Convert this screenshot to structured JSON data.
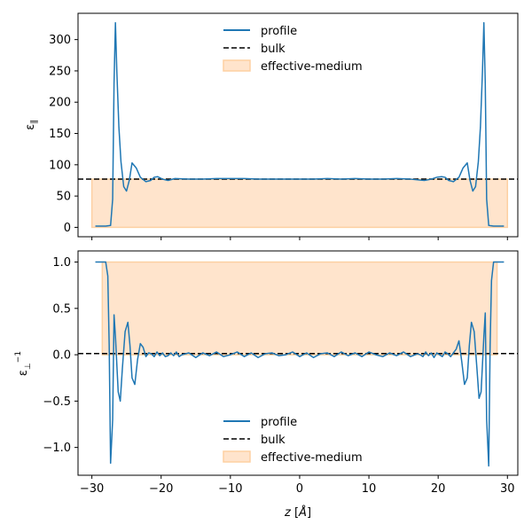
{
  "chart_data": [
    {
      "type": "line",
      "ylabel": "ε_∥",
      "xlim": [
        -32,
        31.5
      ],
      "ylim": [
        -15,
        342
      ],
      "yticks": [
        0,
        50,
        100,
        150,
        200,
        250,
        300
      ],
      "grid": false,
      "legend_placement": "top-center",
      "legend": [
        "profile",
        "bulk",
        "effective-medium"
      ],
      "series": [
        {
          "name": "profile",
          "color": "#1f77b4",
          "x": [
            -29.5,
            -28,
            -27.3,
            -27,
            -26.8,
            -26.6,
            -26.4,
            -26.1,
            -25.8,
            -25.4,
            -25,
            -24.6,
            -24.2,
            -23.6,
            -23,
            -22.2,
            -21.5,
            -21,
            -20.5,
            -19.8,
            -19,
            -18,
            -16,
            -14,
            -12,
            -10,
            -8,
            -6,
            -4,
            -2,
            0,
            2,
            4,
            6,
            8,
            10,
            12,
            14,
            16,
            18,
            19,
            19.8,
            20.5,
            21,
            21.5,
            22.2,
            23,
            23.6,
            24.2,
            24.6,
            25,
            25.4,
            25.8,
            26.1,
            26.4,
            26.6,
            26.8,
            27,
            27.3,
            28,
            29.5
          ],
          "y": [
            2,
            2,
            3,
            45,
            230,
            327,
            250,
            160,
            105,
            65,
            58,
            75,
            103,
            95,
            80,
            73,
            75,
            80,
            81,
            77,
            75,
            78,
            77,
            77,
            78,
            78,
            78,
            77,
            77,
            77,
            77,
            77,
            78,
            77,
            78,
            77,
            77,
            78,
            77,
            75,
            77,
            80,
            81,
            80,
            75,
            73,
            80,
            95,
            103,
            75,
            58,
            65,
            105,
            160,
            250,
            327,
            230,
            45,
            3,
            2,
            2
          ]
        },
        {
          "name": "bulk",
          "style": "dashed",
          "color": "#000000",
          "value": 77
        },
        {
          "name": "effective-medium",
          "type": "area",
          "color": "#ffe4cc",
          "x_range": [
            -30,
            30
          ],
          "value": 77
        }
      ]
    },
    {
      "type": "line",
      "ylabel": "ε_⊥^{-1}",
      "xlabel": "z [Å]",
      "xlim": [
        -32,
        31.5
      ],
      "ylim": [
        -1.3,
        1.12
      ],
      "yticks": [
        -1.0,
        -0.5,
        0.0,
        0.5,
        1.0
      ],
      "xticks": [
        -30,
        -20,
        -10,
        0,
        10,
        20,
        30
      ],
      "grid": false,
      "legend_placement": "bottom-center",
      "legend": [
        "profile",
        "bulk",
        "effective-medium"
      ],
      "series": [
        {
          "name": "profile",
          "color": "#1f77b4",
          "x": [
            -29.5,
            -28.5,
            -28,
            -27.7,
            -27.5,
            -27.3,
            -27,
            -26.8,
            -26.6,
            -26.2,
            -25.9,
            -25.6,
            -25.2,
            -24.8,
            -24.5,
            -24.2,
            -23.8,
            -23.4,
            -23,
            -22.6,
            -22.2,
            -21.8,
            -21.4,
            -21,
            -20.6,
            -20.2,
            -19.8,
            -19.4,
            -19,
            -18.6,
            -18.2,
            -17.8,
            -17.4,
            -17,
            -16,
            -15,
            -14,
            -13,
            -12,
            -11,
            -10,
            -9,
            -8,
            -7,
            -6,
            -5,
            -4,
            -3,
            -2,
            -1,
            0,
            1,
            2,
            3,
            4,
            5,
            6,
            7,
            8,
            9,
            10,
            11,
            12,
            13,
            14,
            15,
            16,
            17,
            17.4,
            17.8,
            18.2,
            18.6,
            19,
            19.4,
            19.8,
            20.2,
            20.6,
            21,
            21.4,
            21.8,
            22.2,
            22.6,
            23,
            23.4,
            23.8,
            24.2,
            24.5,
            24.8,
            25.2,
            25.6,
            25.9,
            26.2,
            26.6,
            26.8,
            27,
            27.3,
            27.5,
            27.7,
            28,
            28.5,
            29.5
          ],
          "y": [
            1.0,
            1.0,
            1.0,
            0.85,
            0.1,
            -1.17,
            -0.7,
            0.43,
            0.2,
            -0.4,
            -0.5,
            -0.15,
            0.25,
            0.35,
            0.1,
            -0.25,
            -0.32,
            -0.05,
            0.12,
            0.08,
            -0.02,
            0.02,
            0.01,
            -0.02,
            0.03,
            -0.01,
            0.02,
            -0.02,
            -0.01,
            0.02,
            -0.01,
            0.03,
            -0.02,
            0.0,
            0.02,
            -0.03,
            0.02,
            -0.01,
            0.03,
            -0.02,
            0.0,
            0.03,
            -0.02,
            0.02,
            -0.03,
            0.01,
            0.02,
            -0.01,
            0.0,
            0.03,
            -0.02,
            0.02,
            -0.03,
            0.01,
            0.02,
            -0.02,
            0.03,
            -0.01,
            0.02,
            -0.02,
            0.03,
            0.0,
            -0.02,
            0.02,
            -0.01,
            0.03,
            -0.02,
            0.01,
            0.0,
            -0.02,
            0.03,
            -0.01,
            0.02,
            -0.03,
            0.02,
            0.0,
            -0.02,
            0.03,
            0.01,
            -0.02,
            0.02,
            0.06,
            0.15,
            -0.07,
            -0.32,
            -0.25,
            0.1,
            0.35,
            0.25,
            -0.15,
            -0.47,
            -0.4,
            0.2,
            0.45,
            -0.7,
            -1.2,
            0.1,
            0.8,
            1.0,
            1.0,
            1.0
          ]
        },
        {
          "name": "bulk",
          "style": "dashed",
          "color": "#000000",
          "value": 0.013
        },
        {
          "name": "effective-medium",
          "type": "area",
          "color": "#ffe4cc",
          "x_range": [
            -28.5,
            28.5
          ],
          "value": 1.0
        }
      ]
    }
  ]
}
